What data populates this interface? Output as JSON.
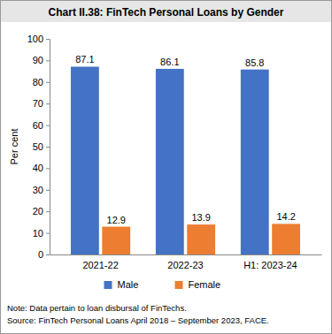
{
  "chart_data": {
    "type": "bar",
    "title": "Chart II.38: FinTech Personal Loans by Gender",
    "y_label": "Per cent",
    "categories": [
      "2021-22",
      "2022-23",
      "H1: 2023-24"
    ],
    "series": [
      {
        "name": "Male",
        "color": "#4472c4",
        "values": [
          87.1,
          86.1,
          85.8
        ]
      },
      {
        "name": "Female",
        "color": "#ed7d31",
        "values": [
          12.9,
          13.9,
          14.2
        ]
      }
    ],
    "ylim": [
      0,
      100
    ],
    "yticks": [
      0,
      10,
      20,
      30,
      40,
      50,
      60,
      70,
      80,
      90,
      100
    ],
    "grid": false,
    "data_labels": true,
    "legend": "bottom",
    "annotations": [
      "Note: Data pertain to loan disbursal of FinTechs.",
      "Source: FinTech Personal Loans April 2018 – September 2023, FACE."
    ]
  }
}
